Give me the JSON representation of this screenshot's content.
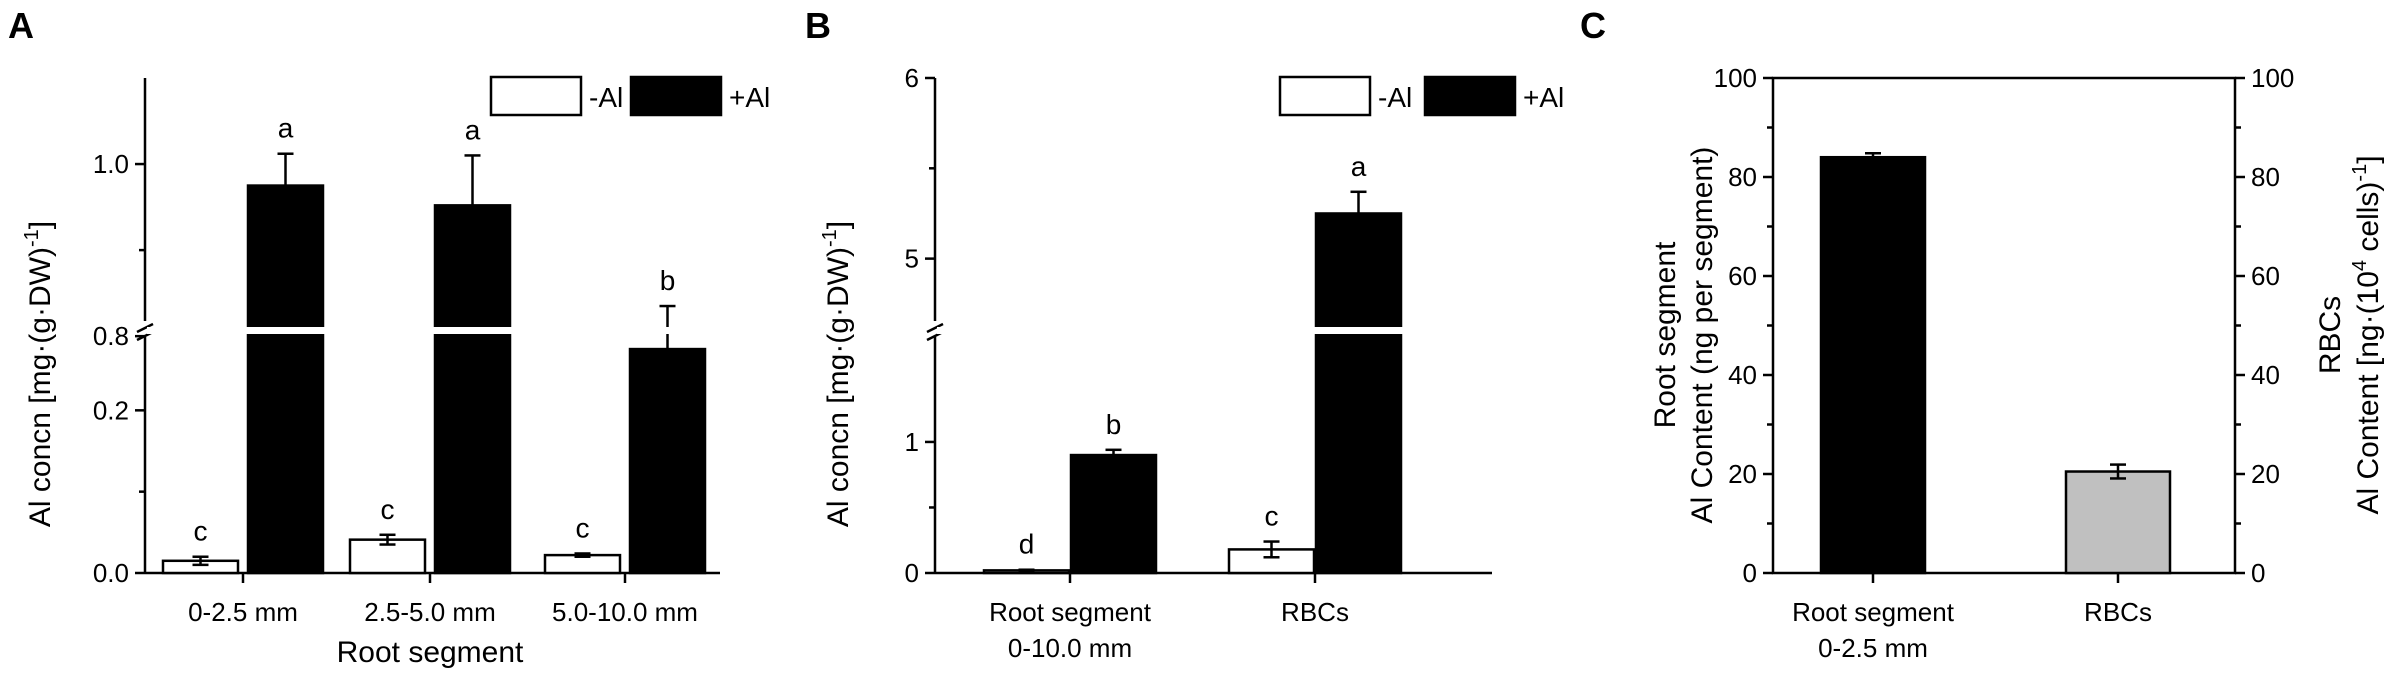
{
  "chart_data": [
    {
      "type": "bar",
      "panel": "A",
      "categories": [
        "0-2.5 mm",
        "2.5-5.0 mm",
        "5.0-10.0 mm"
      ],
      "series": [
        {
          "name": "-Al",
          "color": "#ffffff",
          "values": [
            0.015,
            0.041,
            0.022
          ],
          "errors": [
            0.005,
            0.006,
            0.002
          ],
          "letters": [
            "c",
            "c",
            "c"
          ]
        },
        {
          "name": "+Al",
          "color": "#000000",
          "values": [
            0.975,
            0.952,
            0.785
          ],
          "errors": [
            0.037,
            0.058,
            0.05
          ],
          "letters": [
            "a",
            "a",
            "b"
          ]
        }
      ],
      "xlabel": "Root segment",
      "ylabel": "Al concn [mg·(g·DW)-1]",
      "ylabel_parts": {
        "main": "Al concn [mg·(g·DW)",
        "sup": "-1",
        "close": "]"
      },
      "y_broken": true,
      "ylim_lower": [
        0,
        0.3
      ],
      "ylim_upper": [
        0.72,
        1.1
      ],
      "yticks": [
        "0.0",
        "0.2",
        "0.8",
        "1.0"
      ],
      "legend": "top-right"
    },
    {
      "type": "bar",
      "panel": "B",
      "categories": [
        "Root segment",
        "RBCs"
      ],
      "category_sublabels": [
        "0-10.0 mm",
        ""
      ],
      "series": [
        {
          "name": "-Al",
          "color": "#ffffff",
          "values": [
            0.02,
            0.18
          ],
          "errors": [
            0.005,
            0.06
          ],
          "letters": [
            "d",
            "c"
          ]
        },
        {
          "name": "+Al",
          "color": "#000000",
          "values": [
            0.9,
            5.25
          ],
          "errors": [
            0.04,
            0.12
          ],
          "letters": [
            "b",
            "a"
          ]
        }
      ],
      "xlabel": "",
      "ylabel": "Al concn [mg·(g·DW)-1]",
      "ylabel_parts": {
        "main": "Al concn [mg·(g·DW)",
        "sup": "-1",
        "close": "]"
      },
      "y_broken": true,
      "ylim_lower": [
        0,
        1.9
      ],
      "ylim_upper": [
        4.4,
        6
      ],
      "yticks": [
        "0",
        "1",
        "5",
        "6"
      ],
      "legend": "top-right"
    },
    {
      "type": "bar",
      "panel": "C",
      "categories": [
        "Root segment",
        "RBCs"
      ],
      "category_sublabels": [
        "0-2.5 mm",
        ""
      ],
      "values": [
        84,
        20.5
      ],
      "errors": [
        0.8,
        1.4
      ],
      "colors": [
        "#000000",
        "#c0c0c0"
      ],
      "ylim": [
        0,
        100
      ],
      "yticks": [
        "0",
        "20",
        "40",
        "60",
        "80",
        "100"
      ],
      "ylabel_left_lines": [
        "Root segment",
        "Al Content (ng per segment)"
      ],
      "ylabel_right_lines": [
        "RBCs"
      ],
      "ylabel_right_parts": {
        "main": "Al Content [ng·(10",
        "sup": "4",
        "mid": " cells)",
        "sup2": "-1",
        "close": "]"
      },
      "ylim_right": [
        0,
        100
      ],
      "yticks_right": [
        "0",
        "20",
        "40",
        "60",
        "80",
        "100"
      ]
    }
  ]
}
